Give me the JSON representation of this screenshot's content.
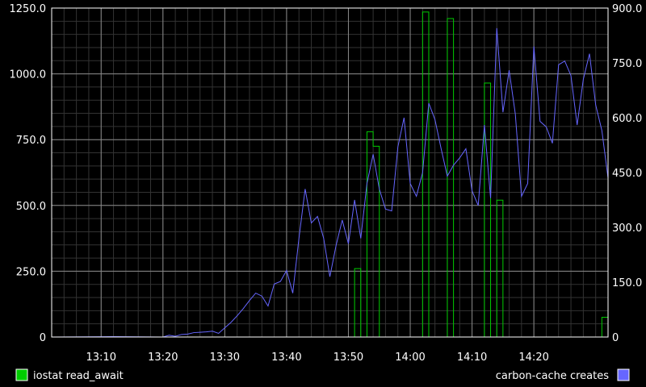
{
  "chart_data": {
    "type": "line",
    "x_unit": "time (HH:MM)",
    "x_range": [
      "13:02",
      "14:32"
    ],
    "x_ticks": [
      "13:10",
      "13:20",
      "13:30",
      "13:40",
      "13:50",
      "14:00",
      "14:10",
      "14:20"
    ],
    "left_axis": {
      "range": [
        0,
        1250
      ],
      "ticks": [
        0,
        250,
        500,
        750,
        1000,
        1250
      ],
      "tick_labels": [
        "0",
        "250.0",
        "500.0",
        "750.0",
        "1000.0",
        "1250.0"
      ]
    },
    "right_axis": {
      "range": [
        0,
        900
      ],
      "ticks": [
        0,
        150,
        300,
        450,
        600,
        750,
        900
      ],
      "tick_labels": [
        "0",
        "150.0",
        "300.0",
        "450.0",
        "600.0",
        "750.0",
        "900.0"
      ]
    },
    "grid": true,
    "legend_placement": "bottom",
    "series": [
      {
        "name": "iostat read_await",
        "axis": "left",
        "color": "#00cc00",
        "step": true,
        "x": [
          "13:02",
          "13:51",
          "13:52",
          "13:53",
          "13:54",
          "13:55",
          "13:56",
          "13:57",
          "14:02",
          "14:03",
          "14:04",
          "14:06",
          "14:07",
          "14:08",
          "14:12",
          "14:13",
          "14:14",
          "14:15",
          "14:16",
          "14:31",
          "14:32"
        ],
        "values": [
          0,
          260,
          0,
          780,
          725,
          0,
          0,
          0,
          1235,
          0,
          0,
          1210,
          0,
          0,
          965,
          0,
          520,
          0,
          0,
          75,
          75
        ]
      },
      {
        "name": "carbon-cache creates",
        "axis": "right",
        "color": "#6666ff",
        "x": [
          "13:02",
          "13:12",
          "13:20",
          "13:21",
          "13:22",
          "13:23",
          "13:24",
          "13:25",
          "13:26",
          "13:27",
          "13:28",
          "13:29",
          "13:30",
          "13:31",
          "13:32",
          "13:33",
          "13:34",
          "13:35",
          "13:36",
          "13:37",
          "13:38",
          "13:39",
          "13:40",
          "13:41",
          "13:42",
          "13:43",
          "13:44",
          "13:45",
          "13:46",
          "13:47",
          "13:48",
          "13:49",
          "13:50",
          "13:51",
          "13:52",
          "13:53",
          "13:54",
          "13:55",
          "13:56",
          "13:57",
          "13:58",
          "13:59",
          "14:00",
          "14:01",
          "14:02",
          "14:03",
          "14:04",
          "14:05",
          "14:06",
          "14:07",
          "14:08",
          "14:09",
          "14:10",
          "14:11",
          "14:12",
          "14:13",
          "14:14",
          "14:15",
          "14:16",
          "14:17",
          "14:18",
          "14:19",
          "14:20",
          "14:21",
          "14:22",
          "14:23",
          "14:24",
          "14:25",
          "14:26",
          "14:27",
          "14:28",
          "14:29",
          "14:30",
          "14:31",
          "14:32"
        ],
        "values": [
          0,
          1,
          0,
          5,
          2,
          7,
          8,
          12,
          13,
          14,
          16,
          10,
          25,
          40,
          58,
          78,
          100,
          120,
          112,
          85,
          145,
          152,
          182,
          120,
          270,
          405,
          312,
          330,
          270,
          165,
          250,
          320,
          255,
          375,
          270,
          420,
          500,
          405,
          350,
          345,
          520,
          600,
          420,
          385,
          450,
          640,
          595,
          515,
          440,
          470,
          490,
          515,
          400,
          360,
          580,
          380,
          845,
          615,
          730,
          610,
          385,
          420,
          795,
          590,
          575,
          530,
          745,
          755,
          715,
          580,
          705,
          775,
          635,
          565,
          435
        ],
        "x_overrides_note": ""
      }
    ]
  }
}
